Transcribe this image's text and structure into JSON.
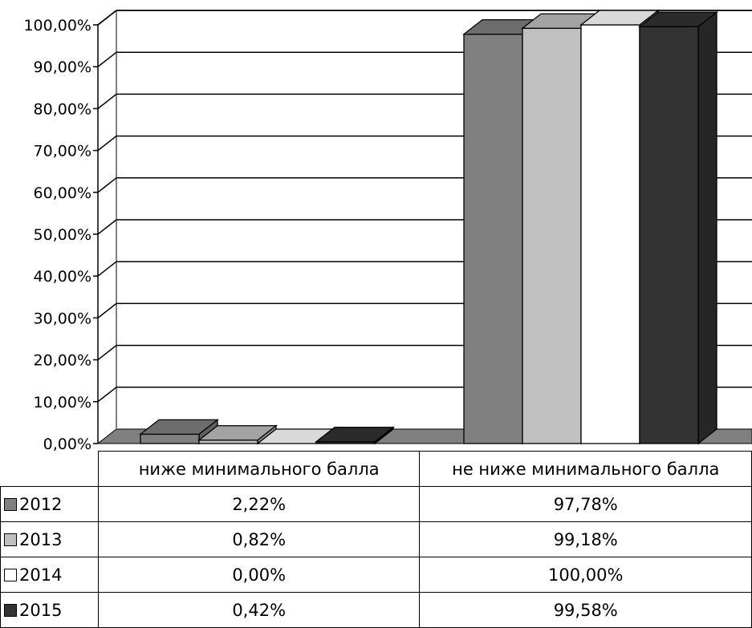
{
  "colors": {
    "2012": "#808080",
    "2013": "#c0c0c0",
    "2014": "#ffffff",
    "2015": "#333333"
  },
  "chart_data": {
    "type": "bar",
    "categories": [
      "ниже минимального балла",
      "не ниже минимального балла"
    ],
    "series": [
      {
        "name": "2012",
        "values": [
          2.22,
          97.78
        ]
      },
      {
        "name": "2013",
        "values": [
          0.82,
          99.18
        ]
      },
      {
        "name": "2014",
        "values": [
          0.0,
          100.0
        ]
      },
      {
        "name": "2015",
        "values": [
          0.42,
          99.58
        ]
      }
    ],
    "ylim": [
      0,
      100
    ],
    "yticks": [
      "0,00%",
      "10,00%",
      "20,00%",
      "30,00%",
      "40,00%",
      "50,00%",
      "60,00%",
      "70,00%",
      "80,00%",
      "90,00%",
      "100,00%"
    ],
    "grid": true,
    "legend": "data-table",
    "title": "",
    "xlabel": "",
    "ylabel": ""
  },
  "table": {
    "headers": [
      "ниже минимального балла",
      "не ниже минимального балла"
    ],
    "rows": [
      {
        "key": "2012",
        "values": [
          "2,22%",
          "97,78%"
        ]
      },
      {
        "key": "2013",
        "values": [
          "0,82%",
          "99,18%"
        ]
      },
      {
        "key": "2014",
        "values": [
          "0,00%",
          "100,00%"
        ]
      },
      {
        "key": "2015",
        "values": [
          "0,42%",
          "99,58%"
        ]
      }
    ]
  }
}
